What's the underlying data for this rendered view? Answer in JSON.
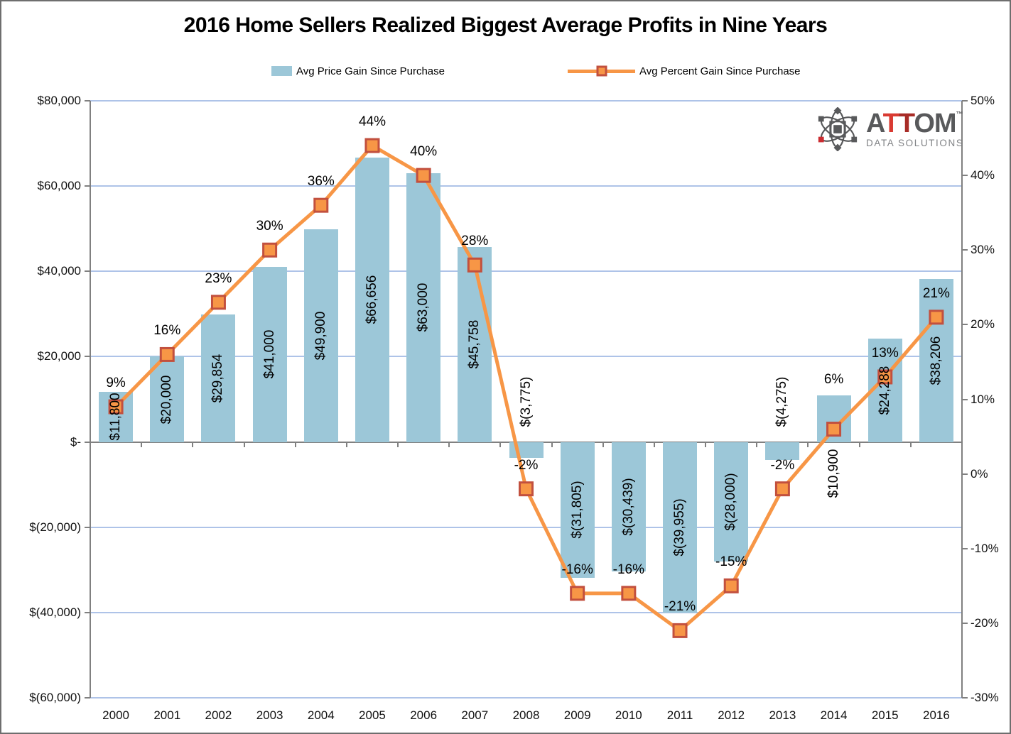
{
  "title": "2016 Home Sellers Realized Biggest Average Profits in Nine Years",
  "legend": {
    "bar_label": "Avg Price Gain Since Purchase",
    "line_label": "Avg Percent Gain Since Purchase"
  },
  "logo": {
    "part_a": "A",
    "part_t1": "T",
    "part_t2": "T",
    "part_om": "OM",
    "trademark": "™",
    "subtitle": "DATA SOLUTIONS"
  },
  "colors": {
    "bar": "#9CC7D8",
    "line": "#F79646",
    "marker_fill": "#F79646",
    "marker_border": "#C2503E",
    "gridline": "#AEC3E8",
    "axis": "#808080",
    "text": "#000000",
    "logo_gray": "#58595B",
    "logo_sub_gray": "#808285",
    "logo_red_bright": "#D93A32",
    "logo_red_dark": "#A82C27",
    "logo_accent_red": "#CB2C30"
  },
  "chart_data": {
    "type": "combo-bar-line",
    "title": "2016 Home Sellers Realized Biggest Average Profits in Nine Years",
    "categories": [
      "2000",
      "2001",
      "2002",
      "2003",
      "2004",
      "2005",
      "2006",
      "2007",
      "2008",
      "2009",
      "2010",
      "2011",
      "2012",
      "2013",
      "2014",
      "2015",
      "2016"
    ],
    "series": [
      {
        "name": "Avg Price Gain Since Purchase",
        "type": "bar",
        "axis": "left",
        "values": [
          11800,
          20000,
          29854,
          41000,
          49900,
          66656,
          63000,
          45758,
          -3775,
          -31805,
          -30439,
          -39955,
          -28000,
          -4275,
          10900,
          24288,
          38206
        ],
        "data_labels": [
          "$11,800",
          "$20,000",
          "$29,854",
          "$41,000",
          "$49,900",
          "$66,656",
          "$63,000",
          "$45,758",
          "$(3,775)",
          "$(31,805)",
          "$(30,439)",
          "$(39,955)",
          "$(28,000)",
          "$(4,275)",
          "$10,900",
          "$24,288",
          "$38,206"
        ],
        "label_placement": [
          "center",
          "center",
          "center",
          "center",
          "center",
          "center",
          "center",
          "center",
          "above-axis",
          "center",
          "center",
          "center",
          "center",
          "above-axis",
          "below-axis",
          "center",
          "center"
        ]
      },
      {
        "name": "Avg Percent Gain Since Purchase",
        "type": "line",
        "axis": "right",
        "values": [
          9,
          16,
          23,
          30,
          36,
          44,
          40,
          28,
          -2,
          -16,
          -16,
          -21,
          -15,
          -2,
          6,
          13,
          21
        ],
        "data_labels": [
          "9%",
          "16%",
          "23%",
          "30%",
          "36%",
          "44%",
          "40%",
          "28%",
          "-2%",
          "-16%",
          "-16%",
          "-21%",
          "-15%",
          "-2%",
          "6%",
          "13%",
          "21%"
        ],
        "label_dy": [
          -33,
          -33,
          -33,
          -33,
          -33,
          -33,
          -33,
          -33,
          -33,
          -33,
          -33,
          -33,
          -33,
          -33,
          -70,
          -33,
          -33
        ]
      }
    ],
    "left_axis": {
      "min": -60000,
      "max": 80000,
      "step": 20000,
      "tick_labels": [
        "$80,000",
        "$60,000",
        "$40,000",
        "$20,000",
        "$-",
        "$(20,000)",
        "$(40,000)",
        "$(60,000)"
      ]
    },
    "right_axis": {
      "min": -30,
      "max": 50,
      "step": 10,
      "tick_labels": [
        "50%",
        "40%",
        "30%",
        "20%",
        "10%",
        "0%",
        "-10%",
        "-20%",
        "-30%"
      ]
    },
    "gridlines": "horizontal",
    "legend_position": "top"
  }
}
